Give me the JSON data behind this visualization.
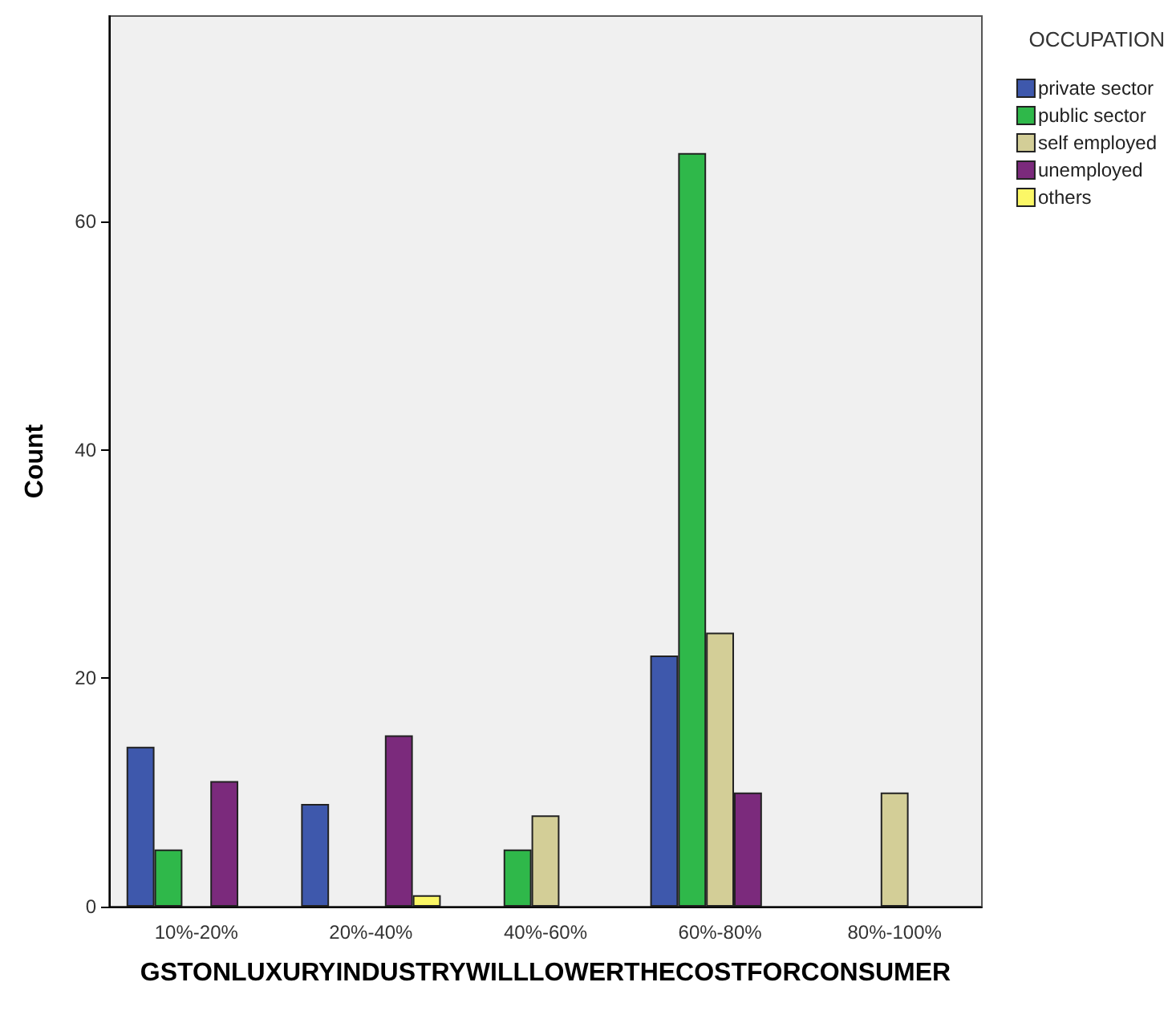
{
  "chart_data": {
    "type": "bar",
    "xlabel": "GSTONLUXURYINDUSTRYWILLLOWERTHECOSTFORCONSUMER",
    "ylabel": "Count",
    "legend_title": "OCCUPATION",
    "categories": [
      "10%-20%",
      "20%-40%",
      "40%-60%",
      "60%-80%",
      "80%-100%"
    ],
    "series": [
      {
        "name": "private sector",
        "color": "#3e58ac",
        "values": [
          14,
          9,
          null,
          22,
          null
        ]
      },
      {
        "name": "public sector",
        "color": "#2fb84a",
        "values": [
          5,
          null,
          5,
          66,
          null
        ]
      },
      {
        "name": "self employed",
        "color": "#d3ce97",
        "values": [
          null,
          null,
          8,
          24,
          10
        ]
      },
      {
        "name": "unemployed",
        "color": "#7b2a7c",
        "values": [
          11,
          15,
          null,
          10,
          null
        ]
      },
      {
        "name": "others",
        "color": "#fbf766",
        "values": [
          null,
          1,
          null,
          null,
          null
        ]
      }
    ],
    "ylim": [
      0,
      78
    ],
    "yticks": [
      0,
      20,
      40,
      60
    ],
    "grid": false,
    "legend": "top right"
  }
}
